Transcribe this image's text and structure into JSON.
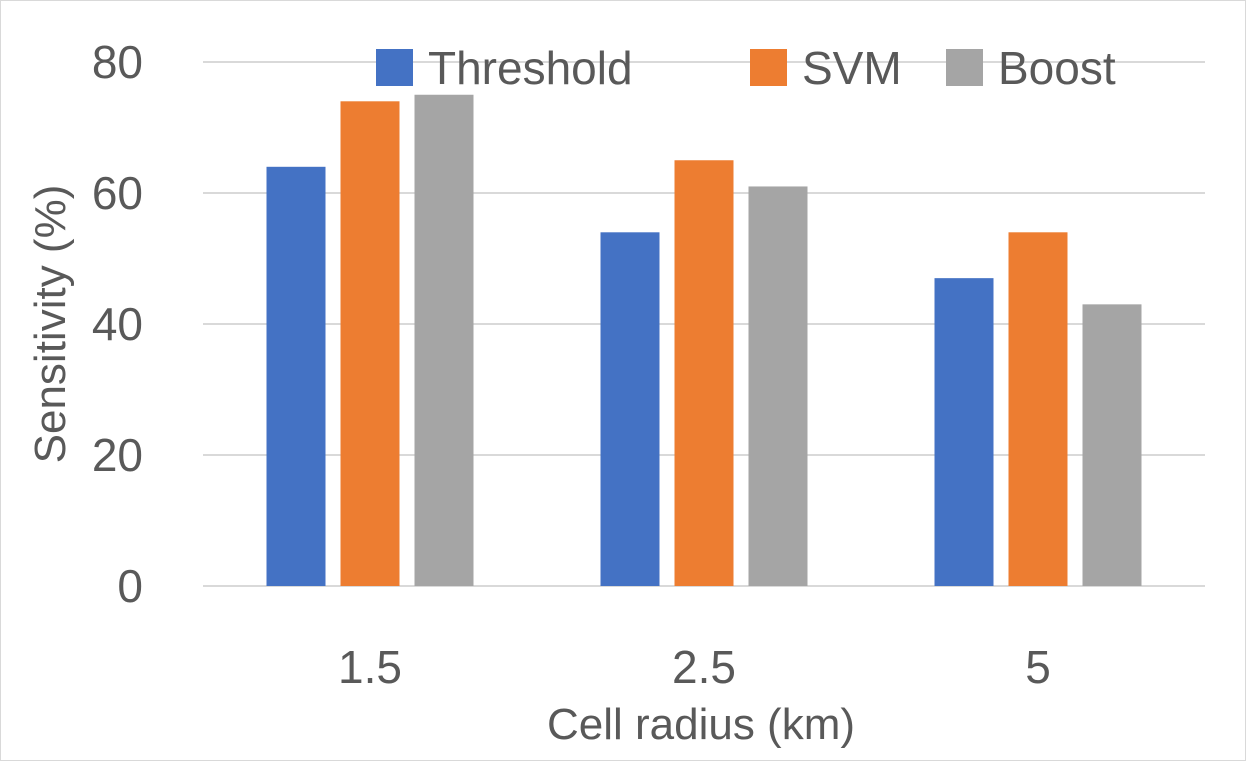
{
  "chart_data": {
    "type": "bar",
    "title": "",
    "xlabel": "Cell radius (km)",
    "ylabel": "Sensitivity (%)",
    "categories": [
      "1.5",
      "2.5",
      "5"
    ],
    "ylim": [
      0,
      80
    ],
    "yticks": [
      0,
      20,
      40,
      60,
      80
    ],
    "grid": true,
    "legend_position": "top-right",
    "series": [
      {
        "name": "Threshold",
        "color": "#4472c4",
        "values": [
          64,
          54,
          47
        ]
      },
      {
        "name": "SVM",
        "color": "#ed7d31",
        "values": [
          74,
          65,
          54
        ]
      },
      {
        "name": "Boost",
        "color": "#a5a5a5",
        "values": [
          75,
          61,
          43
        ]
      }
    ]
  }
}
